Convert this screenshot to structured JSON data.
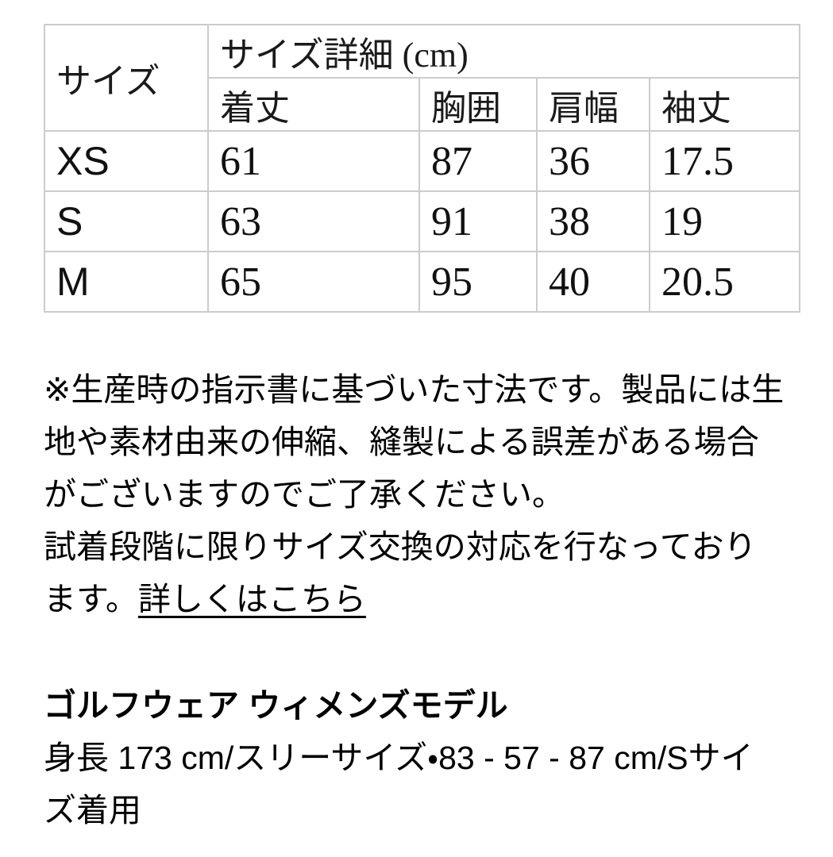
{
  "page": {
    "background_color": "#ffffff",
    "text_color": "#000000",
    "table_border_color": "#cccccc"
  },
  "size_table": {
    "corner_header": "サイズ",
    "group_header": "サイズ詳細 (cm)",
    "columns": [
      "着丈",
      "胸囲",
      "肩幅",
      "袖丈"
    ],
    "rows": [
      {
        "size": "XS",
        "values": [
          "61",
          "87",
          "36",
          "17.5"
        ]
      },
      {
        "size": "S",
        "values": [
          "63",
          "91",
          "38",
          "19"
        ]
      },
      {
        "size": "M",
        "values": [
          "65",
          "95",
          "40",
          "20.5"
        ]
      }
    ]
  },
  "notes": {
    "disclaimer_lines": [
      "※生産時の指示書に基づいた寸法です。製品には生",
      "地や素材由来の伸縮、縫製による誤差がある場合",
      "がございますのでご了承ください。",
      "試着段階に限りサイズ交換の対応を行なっており"
    ],
    "last_line_prefix": "ます。",
    "link_label": "詳しくはこちら"
  },
  "model_info": {
    "heading": "ゴルフウェア ウィメンズモデル",
    "detail_lines": [
      "身長 173 cm/スリーサイズ・83 - 57 - 87 cm/Sサイ",
      "ズ着用"
    ]
  }
}
